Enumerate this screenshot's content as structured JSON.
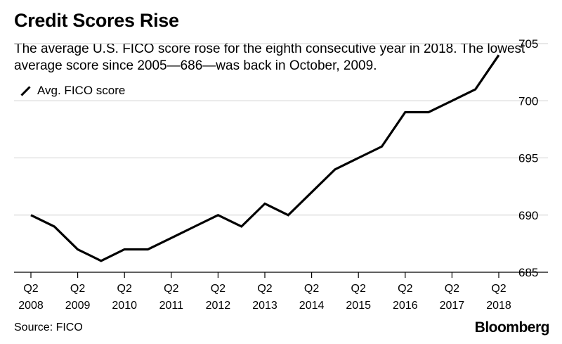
{
  "chart_data": {
    "type": "line",
    "title": "Credit Scores Rise",
    "subtitle": "The average U.S. FICO score rose for the eighth consecutive year in 2018. The lowest average score since 2005—686—was back in October, 2009.",
    "legend": [
      "Avg. FICO score"
    ],
    "x": [
      2008.25,
      2008.75,
      2009.25,
      2009.75,
      2010.25,
      2010.75,
      2011.25,
      2011.75,
      2012.25,
      2012.75,
      2013.25,
      2013.75,
      2014.25,
      2014.75,
      2015.25,
      2015.75,
      2016.25,
      2016.75,
      2017.25,
      2017.75,
      2018.25
    ],
    "series": [
      {
        "name": "Avg. FICO score",
        "values": [
          690,
          689,
          687,
          686,
          687,
          687,
          688,
          689,
          690,
          689,
          691,
          690,
          692,
          694,
          695,
          696,
          699,
          699,
          700,
          701,
          704
        ]
      }
    ],
    "xtick_labels": [
      {
        "q": "Q2",
        "year": "2008"
      },
      {
        "q": "Q2",
        "year": "2009"
      },
      {
        "q": "Q2",
        "year": "2010"
      },
      {
        "q": "Q2",
        "year": "2011"
      },
      {
        "q": "Q2",
        "year": "2012"
      },
      {
        "q": "Q2",
        "year": "2013"
      },
      {
        "q": "Q2",
        "year": "2014"
      },
      {
        "q": "Q2",
        "year": "2015"
      },
      {
        "q": "Q2",
        "year": "2016"
      },
      {
        "q": "Q2",
        "year": "2017"
      },
      {
        "q": "Q2",
        "year": "2018"
      }
    ],
    "yticks": [
      685,
      690,
      695,
      700,
      705
    ],
    "ylim": [
      685,
      706
    ],
    "xlim": [
      2008.25,
      2018.25
    ],
    "grid": true,
    "legend_position": "top-left",
    "source": "Source: FICO",
    "brand": "Bloomberg"
  }
}
